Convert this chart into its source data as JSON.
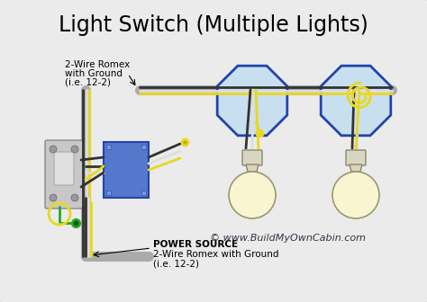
{
  "title": "Light Switch (Multiple Lights)",
  "title_fontsize": 17,
  "bg_color": "#ebebeb",
  "border_color": "#b0b8c8",
  "wire_gray": "#aaaaaa",
  "wire_black": "#333333",
  "wire_yellow": "#e8d820",
  "wire_green": "#22aa22",
  "wire_white": "#dddddd",
  "box_blue_face": "#5577cc",
  "box_blue_edge": "#2244aa",
  "fixture_face": "#c8dff0",
  "fixture_edge": "#2244aa",
  "bulb_color": "#f8f5d0",
  "bulb_base": "#d8d5c0",
  "label_top_line1": "2-Wire Romex",
  "label_top_line2": "with Ground",
  "label_top_line3": "(i.e. 12-2)",
  "label_bottom_line1": "POWER SOURCE",
  "label_bottom_line2": "2-Wire Romex with Ground",
  "label_bottom_line3": "(i.e. 12-2)",
  "watermark": "© www.BuildMyOwnCabin.com"
}
